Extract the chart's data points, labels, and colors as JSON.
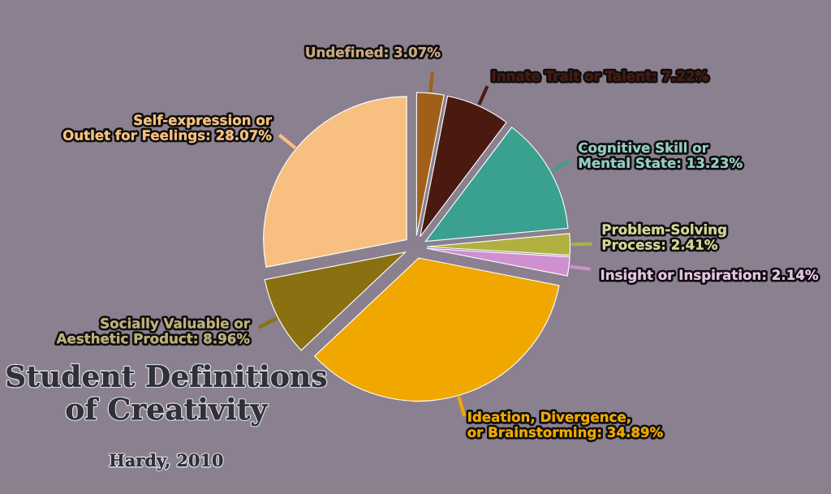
{
  "chart_data": {
    "type": "pie",
    "title": "Student Definitions of Creativity",
    "subtitle": "Hardy, 2010",
    "categories": [
      "Undefined",
      "Innate Trait or Talent",
      "Cognitive Skill or\nMental State",
      "Problem-Solving\nProcess",
      "Insight or Inspiration",
      "Ideation, Divergence,\nor Brainstorming",
      "Socially Valuable or\nAesthetic Product",
      "Self-expression or\nOutlet for Feelings"
    ],
    "values": [
      3.07,
      7.22,
      13.23,
      2.41,
      2.14,
      34.89,
      8.96,
      28.07
    ],
    "value_labels": [
      "3.07%",
      "7.22%",
      "13.23%",
      "2.41%",
      "2.14%",
      "34.89%",
      "8.96%",
      "28.07%"
    ],
    "colors": [
      "#a0601a",
      "#4a1a10",
      "#3aa090",
      "#b0b040",
      "#d090d0",
      "#f0a800",
      "#8a7010",
      "#f8c080"
    ]
  }
}
